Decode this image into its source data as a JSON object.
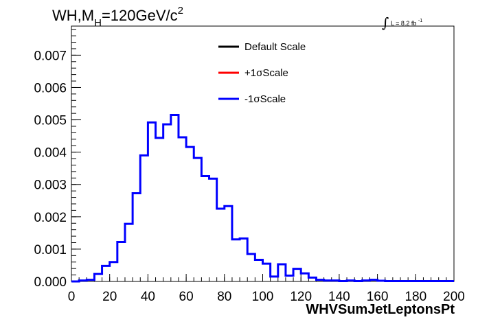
{
  "header": {
    "process": "WH,M",
    "sub": "H",
    "mass": "=120GeV/c",
    "power": "2",
    "lumi_text": "L = 8.2 fb",
    "lumi_exp": "-1",
    "integral_symbol": "∫"
  },
  "chart_data": {
    "type": "line",
    "step": true,
    "xlabel": "WHVSumJetLeptonsPt",
    "ylabel": "",
    "xlim": [
      0,
      200
    ],
    "ylim": [
      0,
      0.0079
    ],
    "x_ticks": [
      0,
      20,
      40,
      60,
      80,
      100,
      120,
      140,
      160,
      180,
      200
    ],
    "y_ticks": [
      0.0,
      0.001,
      0.002,
      0.003,
      0.004,
      0.005,
      0.006,
      0.007
    ],
    "y_tick_labels": [
      "0.000",
      "0.001",
      "0.002",
      "0.003",
      "0.004",
      "0.005",
      "0.006",
      "0.007"
    ],
    "bin_width": 4,
    "legend": {
      "placement": "top-center",
      "entries": [
        {
          "label": "Default Scale",
          "color": "#000000"
        },
        {
          "label": "+1σScale",
          "color": "#ff0000"
        },
        {
          "label": "-1σScale",
          "color": "#0000ff"
        }
      ]
    },
    "series": [
      {
        "name": "-1σScale",
        "color": "#0000ff",
        "values": [
          0.0,
          3e-05,
          5e-05,
          0.00023,
          0.00048,
          0.0006,
          0.00122,
          0.00178,
          0.00273,
          0.0039,
          0.00492,
          0.00444,
          0.00486,
          0.00515,
          0.00446,
          0.00416,
          0.00382,
          0.00326,
          0.00318,
          0.00225,
          0.00233,
          0.0013,
          0.00133,
          0.00085,
          0.00067,
          0.00055,
          0.00015,
          0.00053,
          0.00018,
          0.00039,
          0.00025,
          0.00012,
          5e-05,
          3e-05,
          3e-05,
          1e-05,
          3e-05,
          1e-05,
          3e-05,
          5e-05,
          2e-05,
          1e-05,
          1e-05,
          1e-05,
          1e-05,
          1e-05,
          1e-05,
          1e-05,
          1e-05,
          1e-05
        ]
      }
    ]
  }
}
